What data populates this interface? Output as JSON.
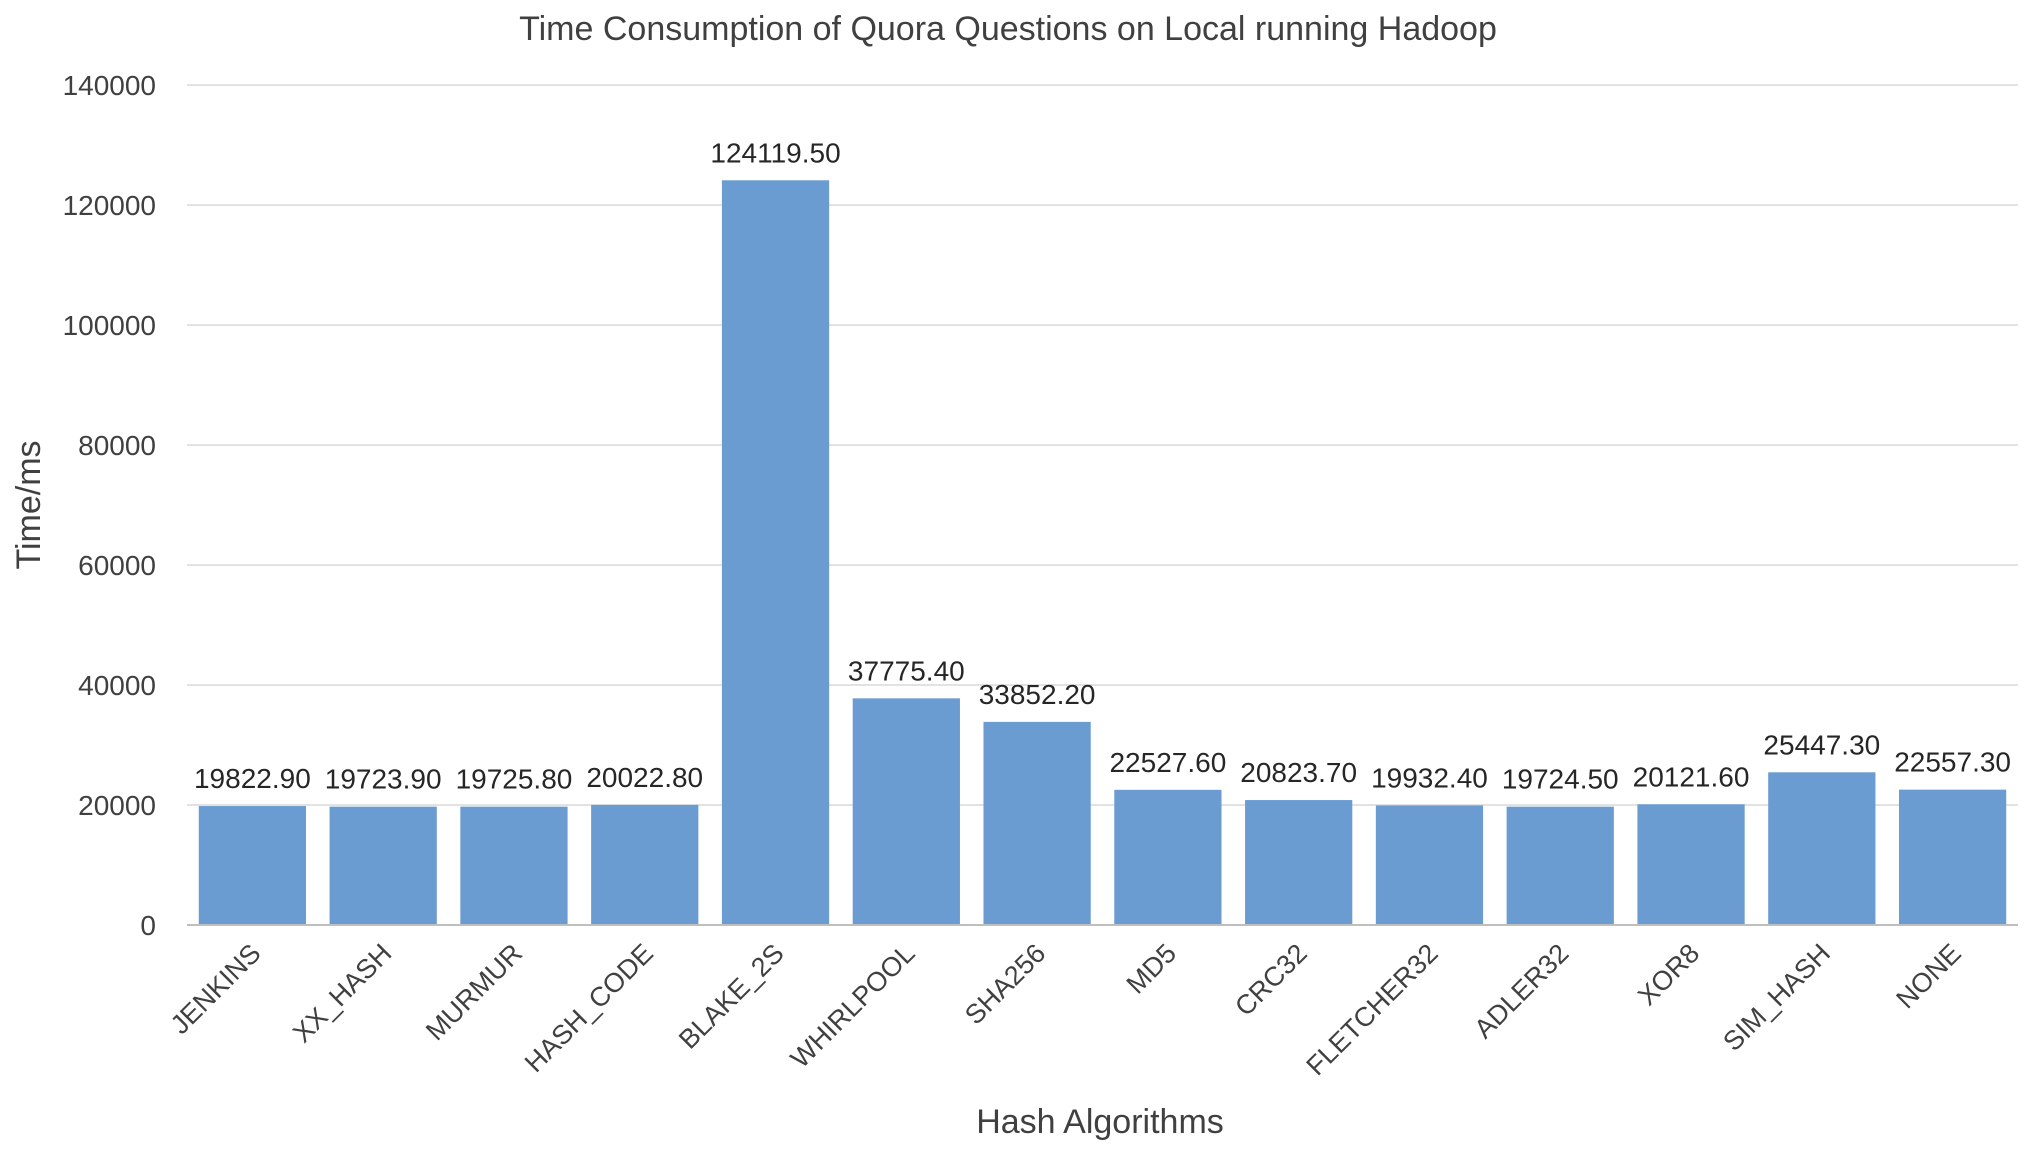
{
  "chart_data": {
    "type": "bar",
    "title": "Time Consumption of Quora Questions on Local running Hadoop",
    "xlabel": "Hash Algorithms",
    "ylabel": "Time/ms",
    "ylim": [
      0,
      140000
    ],
    "yticks": [
      0,
      20000,
      40000,
      60000,
      80000,
      100000,
      120000,
      140000
    ],
    "grid": true,
    "legend": "none",
    "bar_color": "#6a9bd1",
    "categories": [
      "JENKINS",
      "XX_HASH",
      "MURMUR",
      "HASH_CODE",
      "BLAKE_2S",
      "WHIRLPOOL",
      "SHA256",
      "MD5",
      "CRC32",
      "FLETCHER32",
      "ADLER32",
      "XOR8",
      "SIM_HASH",
      "NONE"
    ],
    "values": [
      19822.9,
      19723.9,
      19725.8,
      20022.8,
      124119.5,
      37775.4,
      33852.2,
      22527.6,
      20823.7,
      19932.4,
      19724.5,
      20121.6,
      25447.3,
      22557.3
    ],
    "data_labels": [
      "19822.90",
      "19723.90",
      "19725.80",
      "20022.80",
      "124119.50",
      "37775.40",
      "33852.20",
      "22527.60",
      "20823.70",
      "19932.40",
      "19724.50",
      "20121.60",
      "25447.30",
      "22557.30"
    ]
  }
}
